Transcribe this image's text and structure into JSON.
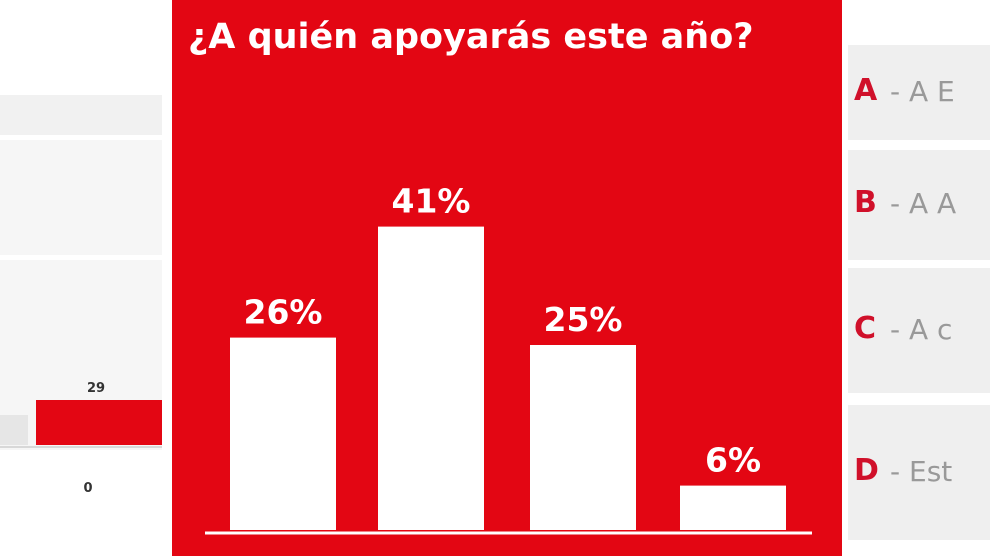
{
  "chart_data": {
    "type": "bar",
    "title": "¿A quién apoyarás este año?",
    "categories": [
      null,
      null,
      null,
      null
    ],
    "values": [
      26,
      41,
      25,
      6
    ],
    "value_labels": [
      "26%",
      "41%",
      "25%",
      "6%"
    ],
    "color": "#ffffff",
    "background": "#e30613"
  },
  "side_panel": {
    "values": [
      29,
      0
    ],
    "color": "#e30613"
  },
  "options": [
    {
      "letter": "A",
      "text": "- A E"
    },
    {
      "letter": "B",
      "text": "- A A"
    },
    {
      "letter": "C",
      "text": "- A c"
    },
    {
      "letter": "D",
      "text": "- Est"
    }
  ]
}
